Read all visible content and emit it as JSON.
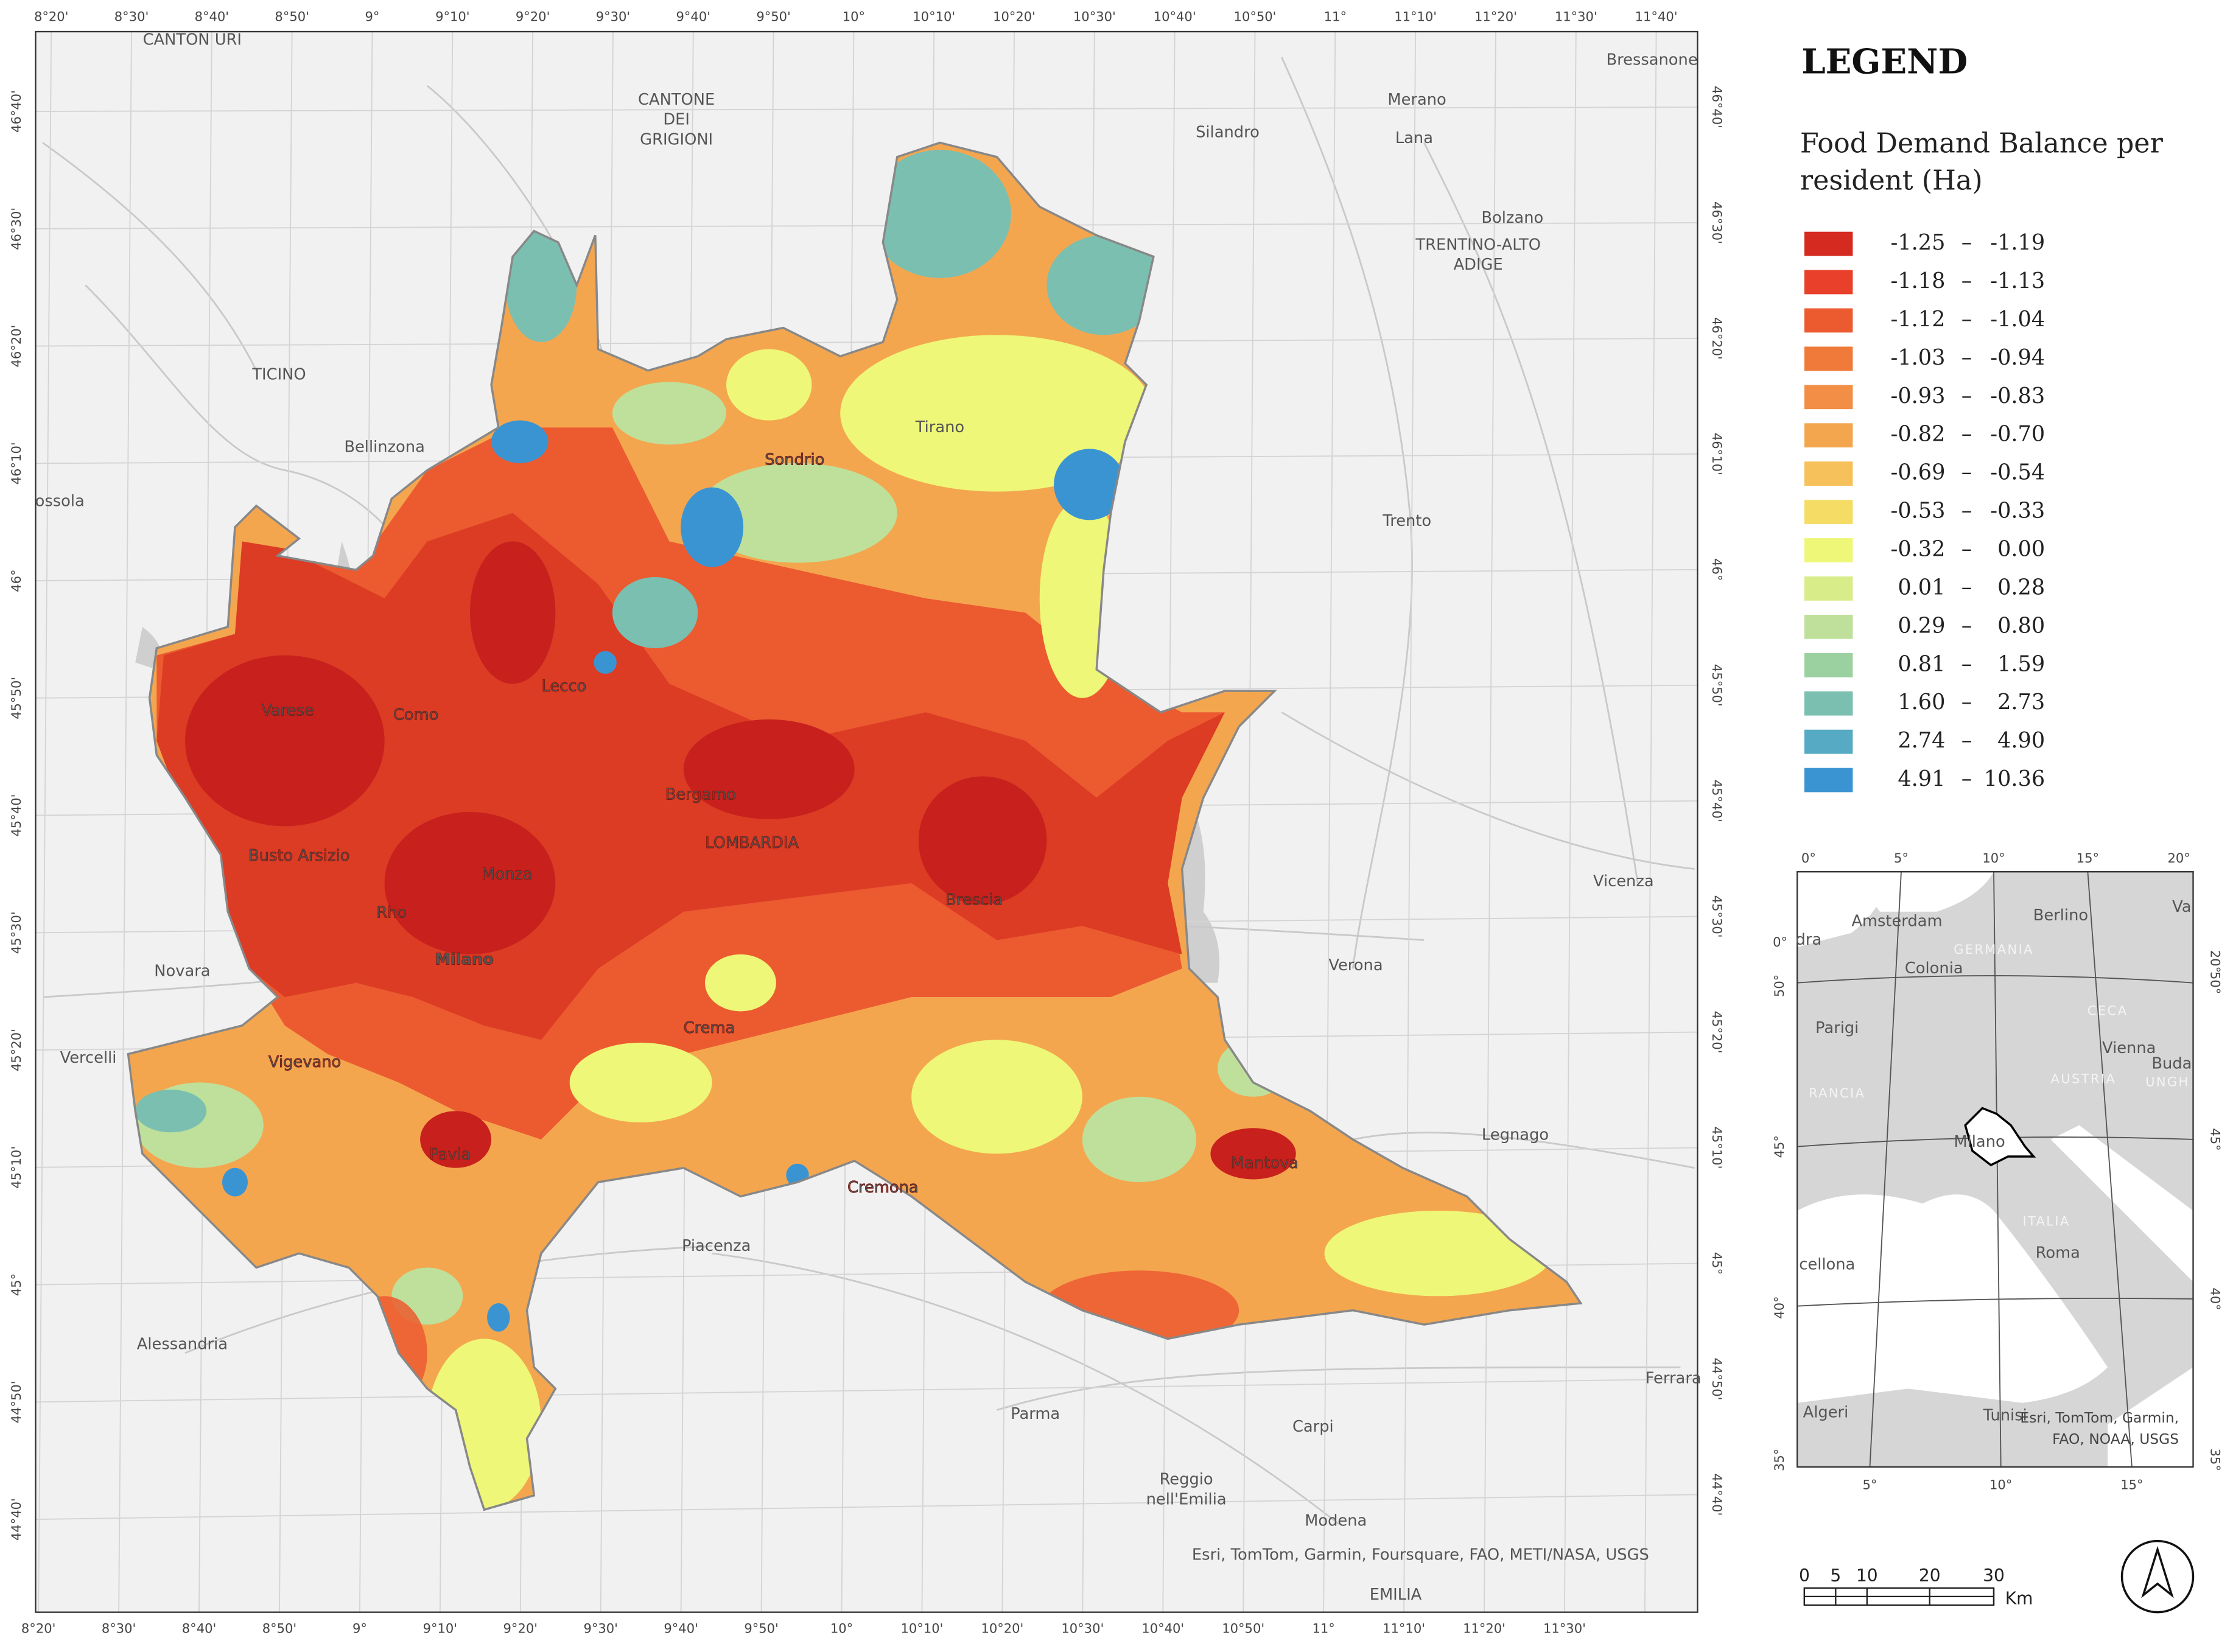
{
  "legend": {
    "title": "LEGEND",
    "subtitle_lines": [
      "Food Demand Balance per",
      "resident (Ha)"
    ],
    "separator": "–",
    "classes": [
      {
        "from": "-1.25",
        "to": "-1.19",
        "color": "#d42a1f"
      },
      {
        "from": "-1.18",
        "to": "-1.13",
        "color": "#e8402a"
      },
      {
        "from": "-1.12",
        "to": "-1.04",
        "color": "#ec5a30"
      },
      {
        "from": "-1.03",
        "to": "-0.94",
        "color": "#ef7a3a"
      },
      {
        "from": "-0.93",
        "to": "-0.83",
        "color": "#f28e45"
      },
      {
        "from": "-0.82",
        "to": "-0.70",
        "color": "#f4a64f"
      },
      {
        "from": "-0.69",
        "to": "-0.54",
        "color": "#f6c05a"
      },
      {
        "from": "-0.53",
        "to": "-0.33",
        "color": "#f5dc64"
      },
      {
        "from": "-0.32",
        "to": "0.00",
        "color": "#eef777"
      },
      {
        "from": "0.01",
        "to": "0.28",
        "color": "#d9ec8a"
      },
      {
        "from": "0.29",
        "to": "0.80",
        "color": "#bfe09a"
      },
      {
        "from": "0.81",
        "to": "1.59",
        "color": "#9bd1a0"
      },
      {
        "from": "1.60",
        "to": "2.73",
        "color": "#7bbfb0"
      },
      {
        "from": "2.74",
        "to": "4.90",
        "color": "#56aac4"
      },
      {
        "from": "4.91",
        "to": "10.36",
        "color": "#3b94d2"
      }
    ]
  },
  "map": {
    "graticule": {
      "top": [
        "8°20'",
        "8°30'",
        "8°40'",
        "8°50'",
        "9°",
        "9°10'",
        "9°20'",
        "9°30'",
        "9°40'",
        "9°50'",
        "10°",
        "10°10'",
        "10°20'",
        "10°30'",
        "10°40'",
        "10°50'",
        "11°",
        "11°10'",
        "11°20'",
        "11°30'",
        "11°40'"
      ],
      "bottom": [
        "8°20'",
        "8°30'",
        "8°40'",
        "8°50'",
        "9°",
        "9°10'",
        "9°20'",
        "9°30'",
        "9°40'",
        "9°50'",
        "10°",
        "10°10'",
        "10°20'",
        "10°30'",
        "10°40'",
        "10°50'",
        "11°",
        "11°10'",
        "11°20'",
        "11°30'"
      ],
      "left": [
        "46°40'",
        "46°30'",
        "46°20'",
        "46°10'",
        "46°",
        "45°50'",
        "45°40'",
        "45°30'",
        "45°20'",
        "45°10'",
        "45°",
        "44°50'",
        "44°40'"
      ],
      "right": [
        "46°40'",
        "46°30'",
        "46°20'",
        "46°10'",
        "46°",
        "45°50'",
        "45°40'",
        "45°30'",
        "45°20'",
        "45°10'",
        "45°",
        "44°50'",
        "44°40'"
      ]
    },
    "places": [
      "CANTON URI",
      "CANTONE",
      "DEI",
      "GRIGIONI",
      "Bressanone",
      "Merano",
      "Lana",
      "Silandro",
      "Bolzano",
      "TRENTINO-ALTO",
      "ADIGE",
      "TICINO",
      "Bellinzona",
      "ossola",
      "Tirano",
      "Sondrio",
      "Trento",
      "Varese",
      "Como",
      "Lecco",
      "Bergamo",
      "LOMBARDIA",
      "Busto Arsizio",
      "Monza",
      "Rho",
      "Brescia",
      "Milano",
      "Novara",
      "Vicenza",
      "Verona",
      "Vercelli",
      "Vigevano",
      "Crema",
      "Legnago",
      "Pavia",
      "Cremona",
      "Mantova",
      "Piacenza",
      "Alessandria",
      "Ferrara",
      "Parma",
      "Carpi",
      "Reggio",
      "nell'Emilia",
      "Modena",
      "EMILIA"
    ],
    "attribution": "Esri, TomTom, Garmin, Foursquare, FAO, METI/NASA, USGS"
  },
  "inset": {
    "top": [
      "0°",
      "5°",
      "10°",
      "15°",
      "20°"
    ],
    "bottom": [
      "5°",
      "10°",
      "15°"
    ],
    "left": [
      "0°",
      "50°",
      "45°",
      "40°",
      "35°"
    ],
    "right": [
      "20°",
      "50°",
      "45°",
      "40°",
      "35°"
    ],
    "places": [
      "dra",
      "Amsterdam",
      "Berlino",
      "GERMANIA",
      "Colonia",
      "Va",
      "Parigi",
      "CECA",
      "Vienna",
      "Buda",
      "AUSTRIA",
      "UNGH",
      "RANCIA",
      "Milano",
      "ITALIA",
      "Roma",
      "cellona",
      "Algeri",
      "Tunisi"
    ],
    "attribution_lines": [
      "Esri, TomTom, Garmin,",
      "FAO, NOAA, USGS"
    ]
  },
  "scale_bar": {
    "labels": [
      "0",
      "5",
      "10",
      "20",
      "30"
    ],
    "unit": "Km"
  }
}
